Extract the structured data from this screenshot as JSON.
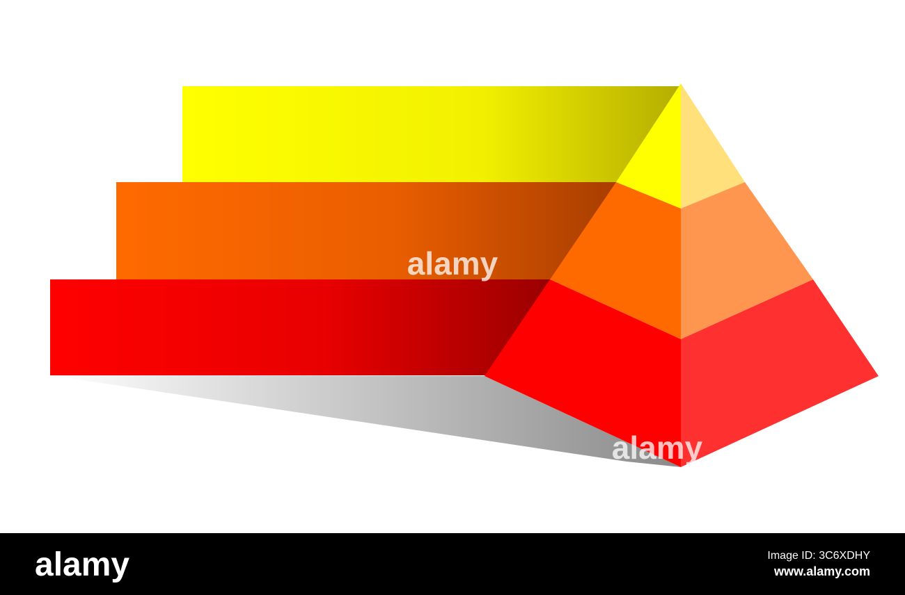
{
  "watermark": "alamy",
  "footer": {
    "logo": "alamy",
    "image_id": "Image ID: 3C6XDHY",
    "url": "www.alamy.com"
  }
}
